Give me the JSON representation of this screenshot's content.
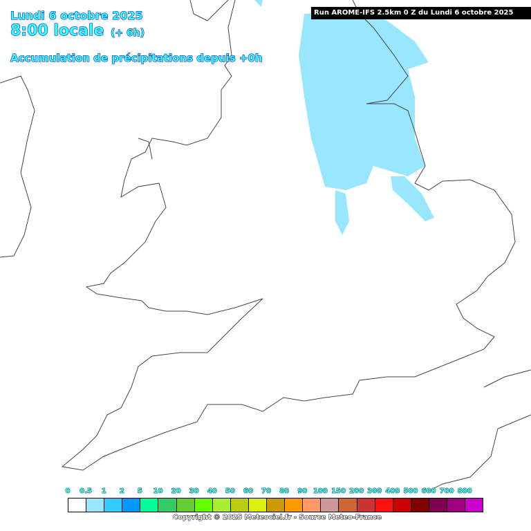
{
  "header": {
    "date": "Lundi 6 octobre 2025",
    "time": "8:00 locale",
    "lead": "(+ 6h)",
    "parameter": "Accumulation de précipitations depuis +0h",
    "run": "Run AROME-IFS 2.5km 0 Z du Lundi 6 octobre 2025"
  },
  "legend": {
    "labels": [
      "0",
      "0.5",
      "1",
      "2",
      "5",
      "10",
      "20",
      "30",
      "40",
      "50",
      "60",
      "70",
      "80",
      "90",
      "100",
      "150",
      "200",
      "300",
      "400",
      "500",
      "600",
      "700",
      "800"
    ],
    "colors": [
      "#ffffff",
      "#99e6ff",
      "#33ccff",
      "#0099ff",
      "#00ff99",
      "#33cc66",
      "#66cc33",
      "#66ff00",
      "#aaee33",
      "#bbcc11",
      "#ddee11",
      "#cc9900",
      "#ff9900",
      "#ff9966",
      "#cc9999",
      "#cc6633",
      "#cc3333",
      "#ff1111",
      "#cc0000",
      "#800000",
      "#800050",
      "#a00080",
      "#cc00cc"
    ]
  },
  "precip_color": "#99e6ff",
  "footer": {
    "copyright": "Copyright © 2025 Meteociel.fr - Source Meteo-France"
  }
}
